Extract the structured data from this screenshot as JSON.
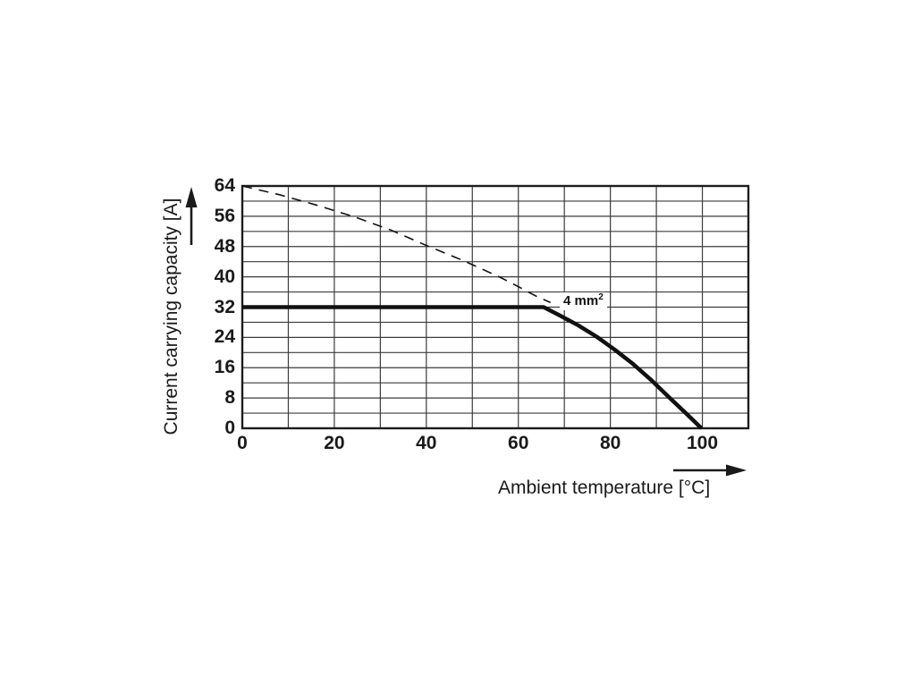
{
  "page": {
    "background": "#ffffff"
  },
  "chart_data": {
    "type": "line",
    "title": "",
    "xlabel": "Ambient temperature [°C]",
    "ylabel": "Current carrying capacity [A]",
    "xlim": [
      0,
      110
    ],
    "ylim": [
      0,
      64
    ],
    "x_grid_step": 10,
    "y_grid_step": 4,
    "x_ticks": [
      0,
      20,
      40,
      60,
      80,
      100
    ],
    "y_ticks": [
      64,
      56,
      48,
      40,
      32,
      24,
      16,
      8,
      0
    ],
    "grid": true,
    "legend": "none",
    "series": [
      {
        "name": "thermal-limit-line-dashed",
        "style": "dashed",
        "stroke_width": 1.6,
        "points": [
          [
            0,
            64
          ],
          [
            8,
            61.7
          ],
          [
            16,
            59
          ],
          [
            24,
            56
          ],
          [
            32,
            52.5
          ],
          [
            40,
            48.3
          ],
          [
            48,
            44.3
          ],
          [
            56,
            39.9
          ],
          [
            60,
            37.4
          ],
          [
            64,
            34.8
          ],
          [
            67,
            33.2
          ]
        ]
      },
      {
        "name": "derating-curve-4mm2",
        "style": "solid",
        "stroke_width": 4.5,
        "points": [
          [
            0,
            32
          ],
          [
            65.5,
            32
          ],
          [
            69,
            29.8
          ],
          [
            73,
            27.2
          ],
          [
            77,
            24.2
          ],
          [
            81,
            20.7
          ],
          [
            85,
            16.9
          ],
          [
            89,
            12.6
          ],
          [
            93,
            7.9
          ],
          [
            96.5,
            3.9
          ],
          [
            99.8,
            0
          ]
        ]
      }
    ],
    "annotation": {
      "text": "4 mm",
      "superscript": "2",
      "x": 69,
      "y": 33.5
    },
    "colors": {
      "line": "#111111",
      "grid": "#3c3c3c",
      "border": "#1d1d1d",
      "text": "#1a1a1a",
      "background": "#ffffff"
    }
  }
}
